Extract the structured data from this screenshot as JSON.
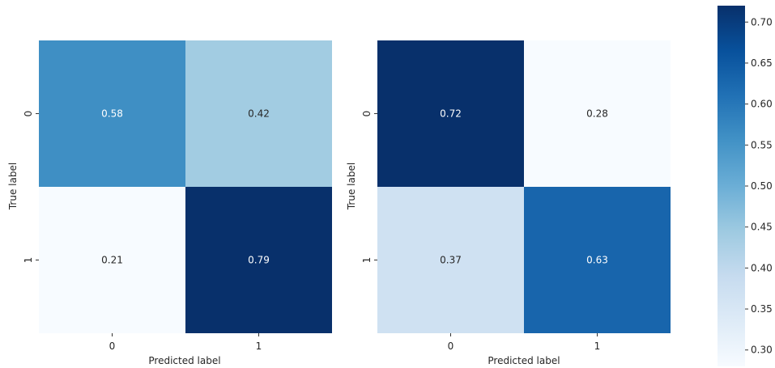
{
  "chart_data": [
    {
      "type": "heatmap",
      "title": "",
      "xlabel": "Predicted label",
      "ylabel": "True label",
      "x_categories": [
        "0",
        "1"
      ],
      "y_categories": [
        "0",
        "1"
      ],
      "values": [
        [
          0.58,
          0.42
        ],
        [
          0.21,
          0.79
        ]
      ],
      "value_labels": [
        [
          "0.58",
          "0.42"
        ],
        [
          "0.21",
          "0.79"
        ]
      ],
      "cmap": "Blues",
      "vmin": 0.21,
      "vmax": 0.79
    },
    {
      "type": "heatmap",
      "title": "",
      "xlabel": "Predicted label",
      "ylabel": "True label",
      "x_categories": [
        "0",
        "1"
      ],
      "y_categories": [
        "0",
        "1"
      ],
      "values": [
        [
          0.72,
          0.28
        ],
        [
          0.37,
          0.63
        ]
      ],
      "value_labels": [
        [
          "0.72",
          "0.28"
        ],
        [
          "0.37",
          "0.63"
        ]
      ],
      "cmap": "Blues",
      "vmin": 0.28,
      "vmax": 0.72
    }
  ],
  "colorbar": {
    "cmap": "Blues",
    "range": [
      0.28,
      0.72
    ],
    "ticks": [
      0.3,
      0.35,
      0.4,
      0.45,
      0.5,
      0.55,
      0.6,
      0.65,
      0.7
    ],
    "tick_labels": [
      "0.30",
      "0.35",
      "0.40",
      "0.45",
      "0.50",
      "0.55",
      "0.60",
      "0.65",
      "0.70"
    ]
  },
  "colors": {
    "blues_scale": [
      "#f7fbff",
      "#deebf7",
      "#c6dbef",
      "#9ecae1",
      "#6baed6",
      "#4292c6",
      "#2171b5",
      "#08519c",
      "#08306b"
    ],
    "text_dark": "#262626",
    "text_light": "#ffffff",
    "tick_color": "#333333"
  }
}
